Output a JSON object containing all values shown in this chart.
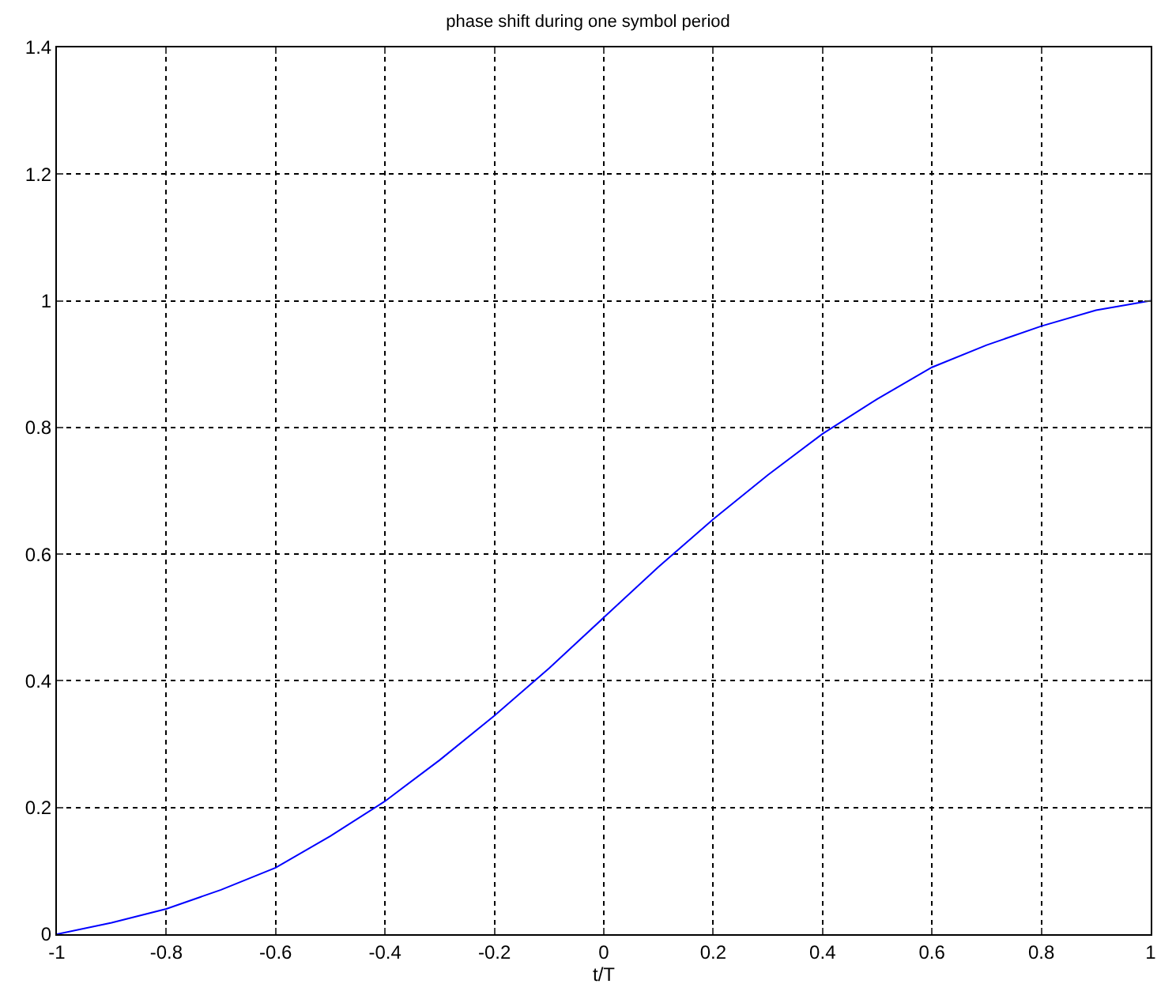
{
  "chart_data": {
    "type": "line",
    "title": "phase shift during one symbol period",
    "xlabel": "t/T",
    "x": [
      -1,
      -0.9,
      -0.8,
      -0.7,
      -0.6,
      -0.5,
      -0.4,
      -0.3,
      -0.2,
      -0.1,
      0,
      0.1,
      0.2,
      0.3,
      0.4,
      0.5,
      0.6,
      0.7,
      0.8,
      0.9,
      1
    ],
    "series": [
      {
        "color": "#0000ff",
        "values": [
          0,
          0.018,
          0.04,
          0.07,
          0.105,
          0.155,
          0.21,
          0.275,
          0.345,
          0.42,
          0.5,
          0.58,
          0.655,
          0.725,
          0.79,
          0.845,
          0.895,
          0.93,
          0.96,
          0.985,
          1.0
        ]
      }
    ],
    "xlim": [
      -1,
      1
    ],
    "xticks": [
      -1,
      -0.8,
      -0.6,
      -0.4,
      -0.2,
      0,
      0.2,
      0.4,
      0.6,
      0.8,
      1
    ],
    "ylim": [
      0,
      1.4
    ],
    "yticks": [
      0,
      0.2,
      0.4,
      0.6,
      0.8,
      1,
      1.2,
      1.4
    ],
    "grid": true,
    "line_style": "solid",
    "marker": "none",
    "legend": false
  }
}
